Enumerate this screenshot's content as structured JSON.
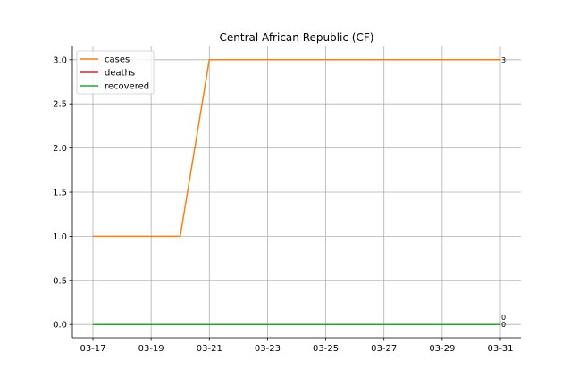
{
  "chart_data": {
    "type": "line",
    "title": "Central African Republic (CF)",
    "xlabel": "",
    "ylabel": "",
    "x": [
      "03-17",
      "03-18",
      "03-19",
      "03-20",
      "03-21",
      "03-22",
      "03-23",
      "03-24",
      "03-25",
      "03-26",
      "03-27",
      "03-28",
      "03-29",
      "03-30",
      "03-31"
    ],
    "x_ticks": [
      "03-17",
      "03-19",
      "03-21",
      "03-23",
      "03-25",
      "03-27",
      "03-29",
      "03-31"
    ],
    "ylim": [
      -0.15,
      3.15
    ],
    "y_ticks": [
      "0.0",
      "0.5",
      "1.0",
      "1.5",
      "2.0",
      "2.5",
      "3.0"
    ],
    "grid": true,
    "legend_position": "top-left",
    "series": [
      {
        "name": "cases",
        "color": "#ff7f0e",
        "values": [
          1,
          1,
          1,
          1,
          3,
          3,
          3,
          3,
          3,
          3,
          3,
          3,
          3,
          3,
          3
        ],
        "end_label": "3"
      },
      {
        "name": "deaths",
        "color": "#d62728",
        "values": [
          0,
          0,
          0,
          0,
          0,
          0,
          0,
          0,
          0,
          0,
          0,
          0,
          0,
          0,
          0
        ],
        "end_label": "0"
      },
      {
        "name": "recovered",
        "color": "#2ca02c",
        "values": [
          0,
          0,
          0,
          0,
          0,
          0,
          0,
          0,
          0,
          0,
          0,
          0,
          0,
          0,
          0
        ],
        "end_label": "0"
      }
    ]
  }
}
